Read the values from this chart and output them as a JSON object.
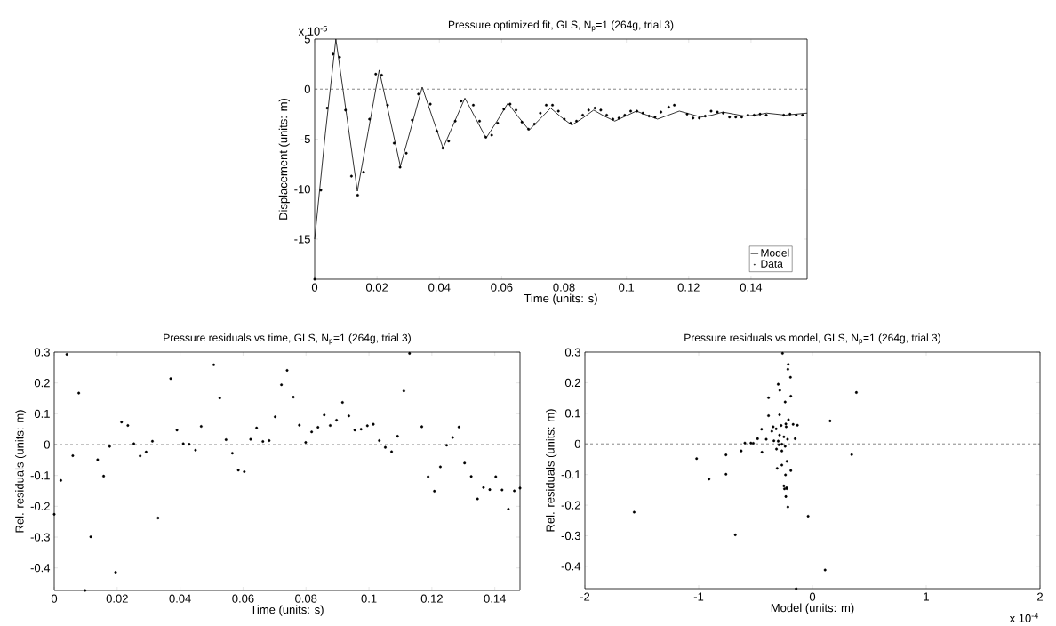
{
  "chart_data": [
    {
      "type": "line",
      "title": "Pressure optimized fit, GLS, N$_{p}$=1 (264g, trial 3)",
      "xlabel": "Time (units: s)",
      "ylabel": "Displacement (units: m)",
      "xlim": [
        0,
        0.158
      ],
      "xticks": [
        0,
        0.02,
        0.04,
        0.06,
        0.08,
        0.1,
        0.12,
        0.14
      ],
      "ylim": [
        -19,
        5
      ],
      "yticks": [
        -15,
        -10,
        -5,
        0,
        5
      ],
      "annotations": [
        "x 10$^{-5}$"
      ],
      "legend": "bottom right",
      "grid": false,
      "ref_lines": [
        {
          "axis": "y",
          "value": 0,
          "color": "#555555",
          "line_style": "dashed"
        }
      ],
      "series": [
        {
          "name": "Model",
          "type": "line",
          "color": "#000000",
          "line_style": "solid",
          "x": [
            0,
            0.0034,
            0.0068,
            0.01025,
            0.0137,
            0.0172,
            0.0207,
            0.0241,
            0.0275,
            0.031,
            0.0345,
            0.03785,
            0.0412,
            0.0447,
            0.0482,
            0.0516,
            0.055,
            0.0585,
            0.062,
            0.0654,
            0.0688,
            0.07225,
            0.0757,
            0.0791,
            0.0825,
            0.086,
            0.0895,
            0.0929,
            0.0963,
            0.09975,
            0.1032,
            0.1066,
            0.11,
            0.1135,
            0.117,
            0.1205,
            0.124,
            0.1275,
            0.131,
            0.1345,
            0.138,
            0.1415,
            0.145,
            0.148,
            0.151,
            0.1545,
            0.158
          ],
          "values": [
            -15,
            -4.5,
            5.0,
            -2.6,
            -10.2,
            -4.2,
            1.9,
            -2.9,
            -7.7,
            -3.8,
            0.2,
            -2.9,
            -5.9,
            -3.4,
            -0.9,
            -2.9,
            -4.9,
            -3.2,
            -1.4,
            -2.8,
            -4.1,
            -3.0,
            -1.9,
            -2.8,
            -3.6,
            -2.9,
            -2.1,
            -2.7,
            -3.2,
            -2.7,
            -2.2,
            -2.6,
            -3.0,
            -2.6,
            -2.2,
            -2.5,
            -2.8,
            -2.6,
            -2.3,
            -2.5,
            -2.7,
            -2.6,
            -2.4,
            -2.5,
            -2.6,
            -2.5,
            -2.4
          ]
        },
        {
          "name": "Data",
          "type": "scatter",
          "color": "#000000",
          "marker": "circle",
          "x": [
            0,
            0.002,
            0.004,
            0.0059,
            0.008,
            0.0099,
            0.0118,
            0.0138,
            0.0157,
            0.0176,
            0.0196,
            0.0215,
            0.0234,
            0.0255,
            0.0274,
            0.0294,
            0.0313,
            0.0333,
            0.0371,
            0.0392,
            0.0411,
            0.043,
            0.0451,
            0.047,
            0.0509,
            0.0529,
            0.0549,
            0.0568,
            0.0587,
            0.0607,
            0.0627,
            0.0646,
            0.0665,
            0.0686,
            0.0705,
            0.0724,
            0.0743,
            0.0763,
            0.0782,
            0.0801,
            0.0821,
            0.084,
            0.086,
            0.0879,
            0.0899,
            0.0918,
            0.0937,
            0.0957,
            0.0976,
            0.0995,
            0.1014,
            0.1034,
            0.1053,
            0.1073,
            0.1092,
            0.1111,
            0.1136,
            0.1154,
            0.1195,
            0.1214,
            0.1234,
            0.1253,
            0.1272,
            0.1292,
            0.1311,
            0.1331,
            0.1351,
            0.137,
            0.139,
            0.141,
            0.1429,
            0.1449,
            0.1505,
            0.1525,
            0.1545,
            0.1565
          ],
          "values": [
            -19.0,
            -10.1,
            -1.9,
            3.5,
            3.2,
            -2.1,
            -8.7,
            -10.6,
            -8.3,
            -3.0,
            1.5,
            1.4,
            -1.6,
            -5.4,
            -7.8,
            -6.4,
            -3.1,
            -0.5,
            -1.5,
            -4.2,
            -5.9,
            -5.2,
            -3.2,
            -1.2,
            -1.6,
            -3.2,
            -4.8,
            -4.6,
            -3.4,
            -2.0,
            -1.5,
            -2.1,
            -3.3,
            -4.0,
            -3.5,
            -2.4,
            -1.6,
            -1.6,
            -2.2,
            -3.0,
            -3.4,
            -3.2,
            -2.6,
            -2.1,
            -1.9,
            -2.1,
            -2.6,
            -3.0,
            -2.9,
            -2.6,
            -2.2,
            -2.2,
            -2.4,
            -2.7,
            -2.8,
            -2.3,
            -1.8,
            -1.6,
            -2.5,
            -2.9,
            -2.9,
            -2.7,
            -2.2,
            -2.3,
            -2.4,
            -2.8,
            -2.8,
            -2.8,
            -2.6,
            -2.6,
            -2.5,
            -2.6,
            -2.6,
            -2.5,
            -2.6,
            -2.6
          ]
        }
      ]
    },
    {
      "type": "scatter",
      "title": "Pressure residuals vs time, GLS, N$_{p}$=1 (264g, trial 3)",
      "xlabel": "Time (units: s)",
      "ylabel": "Rel. residuals (units: m)",
      "xlim": [
        0,
        0.148
      ],
      "xticks": [
        0,
        0.02,
        0.04,
        0.06,
        0.08,
        0.1,
        0.12,
        0.14
      ],
      "ylim": [
        -0.473,
        0.3
      ],
      "yticks": [
        -0.4,
        -0.3,
        -0.2,
        -0.1,
        0,
        0.1,
        0.2,
        0.3
      ],
      "marker": "circle",
      "grid": false,
      "ref_lines": [
        {
          "axis": "y",
          "value": 0,
          "color": "#555555",
          "line_style": "dashed"
        }
      ],
      "series": [
        {
          "color": "#000000",
          "x": [
            0,
            0.0021,
            0.004,
            0.0059,
            0.0078,
            0.0098,
            0.0116,
            0.0138,
            0.0157,
            0.0176,
            0.0195,
            0.0214,
            0.0234,
            0.0253,
            0.0273,
            0.0292,
            0.0312,
            0.033,
            0.037,
            0.039,
            0.041,
            0.0429,
            0.0449,
            0.0467,
            0.0507,
            0.0526,
            0.0546,
            0.0566,
            0.0585,
            0.0604,
            0.0624,
            0.0643,
            0.0663,
            0.0683,
            0.0702,
            0.0722,
            0.074,
            0.076,
            0.0779,
            0.0799,
            0.0818,
            0.0838,
            0.0858,
            0.0877,
            0.0897,
            0.0916,
            0.0936,
            0.0955,
            0.0975,
            0.0995,
            0.1014,
            0.1033,
            0.1052,
            0.1072,
            0.1091,
            0.1111,
            0.1129,
            0.1168,
            0.1188,
            0.1208,
            0.1227,
            0.1247,
            0.1266,
            0.1286,
            0.1304,
            0.1325,
            0.1345,
            0.1364,
            0.1384,
            0.1403,
            0.1423,
            0.1443,
            0.1462,
            0.148
          ],
          "values": [
            -0.226,
            -0.116,
            0.293,
            -0.036,
            0.167,
            -0.473,
            -0.299,
            -0.049,
            -0.102,
            -0.006,
            -0.414,
            0.073,
            0.062,
            0.003,
            -0.037,
            -0.024,
            0.011,
            -0.238,
            0.214,
            0.047,
            0.003,
            0.001,
            -0.018,
            0.059,
            0.259,
            0.151,
            0.016,
            -0.028,
            -0.083,
            -0.088,
            0.017,
            0.054,
            0.01,
            0.013,
            0.09,
            0.194,
            0.241,
            0.154,
            0.063,
            0.007,
            0.041,
            0.056,
            0.096,
            0.062,
            0.079,
            0.137,
            0.093,
            0.047,
            0.05,
            0.061,
            0.066,
            0.013,
            -0.009,
            -0.023,
            0.027,
            0.174,
            0.296,
            0.058,
            -0.104,
            -0.151,
            -0.072,
            -0.002,
            0.023,
            0.057,
            -0.06,
            -0.103,
            -0.176,
            -0.139,
            -0.146,
            -0.104,
            -0.147,
            -0.209,
            -0.15,
            -0.141
          ]
        }
      ]
    },
    {
      "type": "scatter",
      "title": "Pressure residuals vs model, GLS, N$_{p}$=1 (264g, trial 3)",
      "xlabel": "Model (units: m)",
      "ylabel": "Rel. residuals (units: m)",
      "xlim": [
        -2,
        2
      ],
      "xticks": [
        -2,
        -1,
        0,
        1,
        2
      ],
      "ylim": [
        -0.473,
        0.3
      ],
      "yticks": [
        -0.4,
        -0.3,
        -0.2,
        -0.1,
        0,
        0.1,
        0.2,
        0.3
      ],
      "annotations": [
        "x 10$^{-4}$"
      ],
      "marker": "circle",
      "grid": false,
      "ref_lines": [
        {
          "axis": "y",
          "value": 0,
          "color": "#555555",
          "line_style": "dashed"
        }
      ],
      "series": [
        {
          "color": "#000000",
          "x": [
            -1.567,
            -1.018,
            -0.909,
            -0.76,
            -0.76,
            -0.678,
            -0.626,
            -0.594,
            -0.541,
            -0.52,
            -0.482,
            -0.447,
            -0.444,
            -0.406,
            -0.386,
            -0.386,
            -0.357,
            -0.345,
            -0.339,
            -0.319,
            -0.316,
            -0.31,
            -0.301,
            -0.301,
            -0.295,
            -0.289,
            -0.289,
            -0.287,
            -0.275,
            -0.269,
            -0.269,
            -0.269,
            -0.263,
            -0.251,
            -0.251,
            -0.246,
            -0.24,
            -0.24,
            -0.237,
            -0.234,
            -0.234,
            -0.231,
            -0.228,
            -0.225,
            -0.225,
            -0.219,
            -0.216,
            -0.213,
            -0.216,
            -0.211,
            -0.193,
            -0.19,
            -0.19,
            -0.17,
            -0.152,
            -0.143,
            -0.132,
            -0.038,
            0.111,
            0.155,
            0.345,
            0.386
          ],
          "values": [
            -0.223,
            -0.048,
            -0.115,
            -0.036,
            -0.099,
            -0.297,
            -0.023,
            0.003,
            0.003,
            0.002,
            0.017,
            0.048,
            -0.027,
            0.015,
            0.151,
            0.092,
            0.041,
            0.056,
            0.01,
            0.049,
            -0.017,
            -0.08,
            0.195,
            0.009,
            -0.003,
            0.095,
            0.029,
            0.175,
            0.06,
            -0.001,
            -0.023,
            -0.069,
            0.296,
            0.023,
            -0.137,
            -0.147,
            0.137,
            -0.008,
            -0.101,
            0.065,
            -0.172,
            0.056,
            -0.143,
            -0.146,
            -0.057,
            0.015,
            0.244,
            0.26,
            -0.206,
            0.079,
            0.218,
            0.156,
            -0.087,
            0.064,
            0.017,
            -0.473,
            0.061,
            -0.236,
            -0.412,
            0.075,
            -0.035,
            0.168
          ]
        }
      ]
    }
  ]
}
